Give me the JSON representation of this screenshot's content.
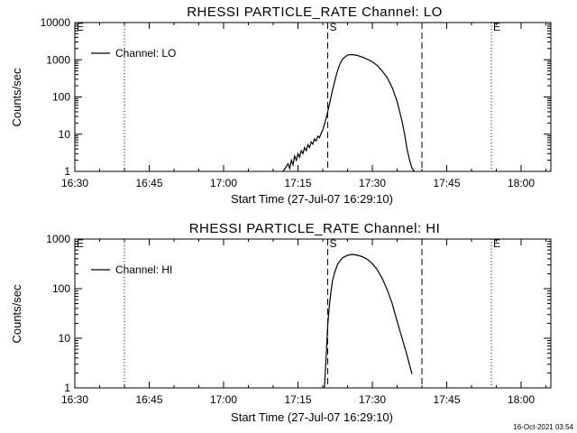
{
  "footer": {
    "timestamp": "16-Oct-2021 03:54"
  },
  "chart_data": [
    {
      "type": "line",
      "title": "RHESSI PARTICLE_RATE Channel: LO",
      "xlabel": "Start Time (27-Jul-07 16:29:10)",
      "ylabel": "Counts/sec",
      "yscale": "log",
      "xlim": [
        "16:30",
        "18:06"
      ],
      "ylim": [
        1,
        10000
      ],
      "x_ticks": [
        "16:30",
        "16:45",
        "17:00",
        "17:15",
        "17:30",
        "17:45",
        "18:00"
      ],
      "y_ticks": [
        "1",
        "10",
        "100",
        "1000",
        "10000"
      ],
      "legend": "top-left",
      "markers": [
        {
          "time": "16:30",
          "style": "dotted",
          "label": "E"
        },
        {
          "time": "16:40",
          "style": "dotted",
          "label": ""
        },
        {
          "time": "17:21",
          "style": "dashed",
          "label": "S"
        },
        {
          "time": "17:40",
          "style": "dashed",
          "label": ""
        },
        {
          "time": "17:54",
          "style": "dotted",
          "label": "E"
        },
        {
          "time": "18:06",
          "style": "dotted",
          "label": ""
        }
      ],
      "series": [
        {
          "name": "Channel: LO",
          "x": [
            "17:12:00",
            "17:13:00",
            "17:13:20",
            "17:13:40",
            "17:14:00",
            "17:14:20",
            "17:14:40",
            "17:15:00",
            "17:15:20",
            "17:15:40",
            "17:16:00",
            "17:16:20",
            "17:16:40",
            "17:17:00",
            "17:17:20",
            "17:17:40",
            "17:18:00",
            "17:18:20",
            "17:18:40",
            "17:19:00",
            "17:19:20",
            "17:19:40",
            "17:20:00",
            "17:20:30",
            "17:21:00",
            "17:21:30",
            "17:22:00",
            "17:22:30",
            "17:23:00",
            "17:23:30",
            "17:24:00",
            "17:25:00",
            "17:26:00",
            "17:27:00",
            "17:28:00",
            "17:29:00",
            "17:30:00",
            "17:31:00",
            "17:32:00",
            "17:33:00",
            "17:34:00",
            "17:35:00",
            "17:36:00",
            "17:36:30",
            "17:37:00",
            "17:37:30",
            "17:38:00",
            "17:38:30"
          ],
          "values": [
            1,
            1.6,
            1.2,
            2,
            1.5,
            2.6,
            2,
            3,
            2.4,
            3.6,
            3,
            4.4,
            3.6,
            5.2,
            4.4,
            6.2,
            5.4,
            7.4,
            6.6,
            8.8,
            8,
            10.5,
            13,
            22,
            40,
            80,
            160,
            300,
            520,
            800,
            1050,
            1350,
            1380,
            1300,
            1180,
            1030,
            880,
            700,
            500,
            330,
            180,
            75,
            22,
            10,
            4,
            2,
            1.2,
            1
          ]
        }
      ]
    },
    {
      "type": "line",
      "title": "RHESSI PARTICLE_RATE Channel: HI",
      "xlabel": "Start Time (27-Jul-07 16:29:10)",
      "ylabel": "Counts/sec",
      "yscale": "log",
      "xlim": [
        "16:30",
        "18:06"
      ],
      "ylim": [
        1,
        1000
      ],
      "x_ticks": [
        "16:30",
        "16:45",
        "17:00",
        "17:15",
        "17:30",
        "17:45",
        "18:00"
      ],
      "y_ticks": [
        "1",
        "10",
        "100",
        "1000"
      ],
      "legend": "top-left",
      "markers": [
        {
          "time": "16:30",
          "style": "dotted",
          "label": "E"
        },
        {
          "time": "16:40",
          "style": "dotted",
          "label": ""
        },
        {
          "time": "17:21",
          "style": "dashed",
          "label": "S"
        },
        {
          "time": "17:40",
          "style": "dashed",
          "label": ""
        },
        {
          "time": "17:54",
          "style": "dotted",
          "label": "E"
        },
        {
          "time": "18:06",
          "style": "dotted",
          "label": ""
        }
      ],
      "series": [
        {
          "name": "Channel: HI",
          "x": [
            "17:20:20",
            "17:20:40",
            "17:21:00",
            "17:21:20",
            "17:21:40",
            "17:22:00",
            "17:22:30",
            "17:23:00",
            "17:23:30",
            "17:24:00",
            "17:25:00",
            "17:26:00",
            "17:27:00",
            "17:28:00",
            "17:29:00",
            "17:30:00",
            "17:31:00",
            "17:32:00",
            "17:33:00",
            "17:34:00",
            "17:35:00",
            "17:36:00",
            "17:37:00",
            "17:38:00"
          ],
          "values": [
            1,
            4,
            18,
            45,
            90,
            150,
            230,
            310,
            370,
            420,
            470,
            490,
            470,
            440,
            390,
            320,
            240,
            160,
            95,
            50,
            22,
            10,
            4.5,
            1.9
          ]
        }
      ]
    }
  ]
}
